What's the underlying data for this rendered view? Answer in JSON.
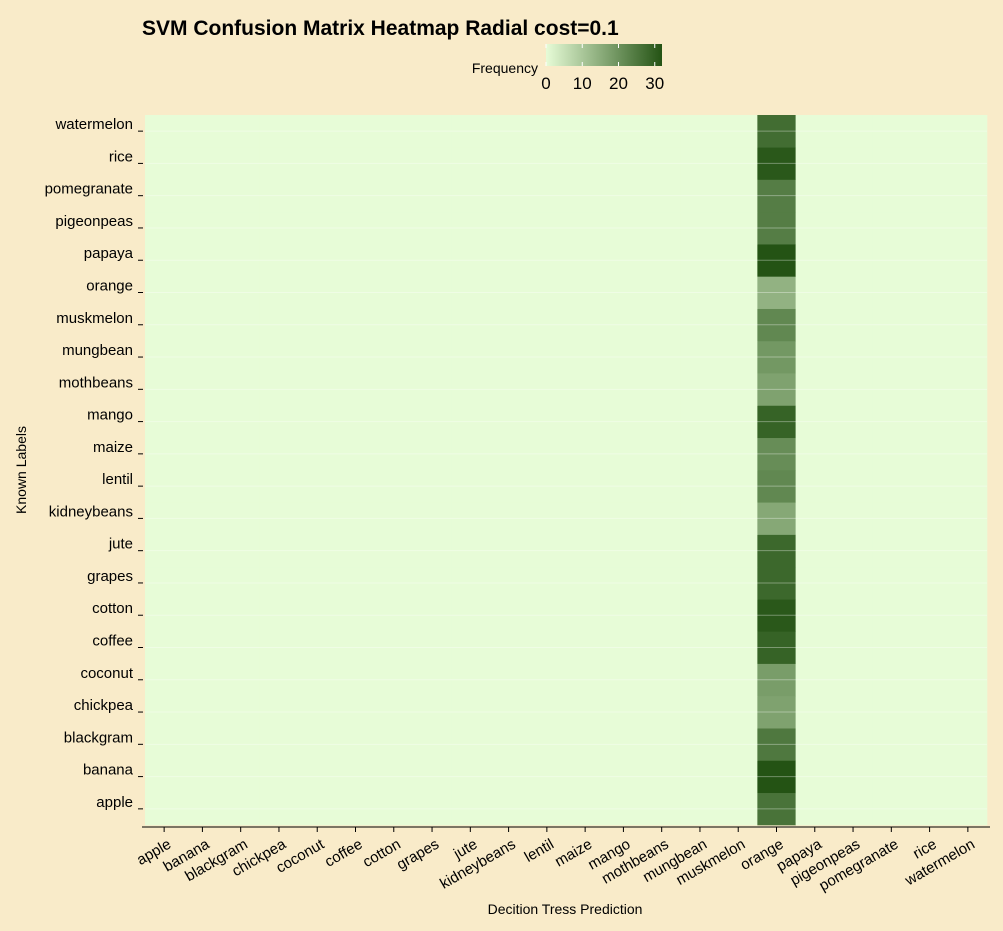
{
  "chart_data": {
    "type": "heatmap",
    "title": "SVM Confusion Matrix Heatmap Radial cost=0.1",
    "xlabel": "Decition Tress Prediction",
    "ylabel": "Known Labels",
    "x_categories": [
      "apple",
      "banana",
      "blackgram",
      "chickpea",
      "coconut",
      "coffee",
      "cotton",
      "grapes",
      "jute",
      "kidneybeans",
      "lentil",
      "maize",
      "mango",
      "mothbeans",
      "mungbean",
      "muskmelon",
      "orange",
      "papaya",
      "pigeonpeas",
      "pomegranate",
      "rice",
      "watermelon"
    ],
    "y_categories": [
      "apple",
      "banana",
      "blackgram",
      "chickpea",
      "coconut",
      "coffee",
      "cotton",
      "grapes",
      "jute",
      "kidneybeans",
      "lentil",
      "maize",
      "mango",
      "mothbeans",
      "mungbean",
      "muskmelon",
      "orange",
      "papaya",
      "pigeonpeas",
      "pomegranate",
      "rice",
      "watermelon"
    ],
    "predicted_column": "orange",
    "column_values": [
      26,
      32,
      25,
      17,
      18,
      29,
      31,
      28,
      28,
      16,
      22,
      21,
      29,
      17,
      19,
      22,
      14,
      32,
      24,
      24,
      31,
      27
    ],
    "other_cells_value": 0,
    "legend": {
      "title": "Frequency",
      "ticks": [
        0,
        10,
        20,
        30
      ],
      "range": [
        0,
        32
      ],
      "position": "top",
      "color_low": "#e7fcd7",
      "color_high": "#245314"
    },
    "background": "#f9ebc9",
    "grid": true
  }
}
